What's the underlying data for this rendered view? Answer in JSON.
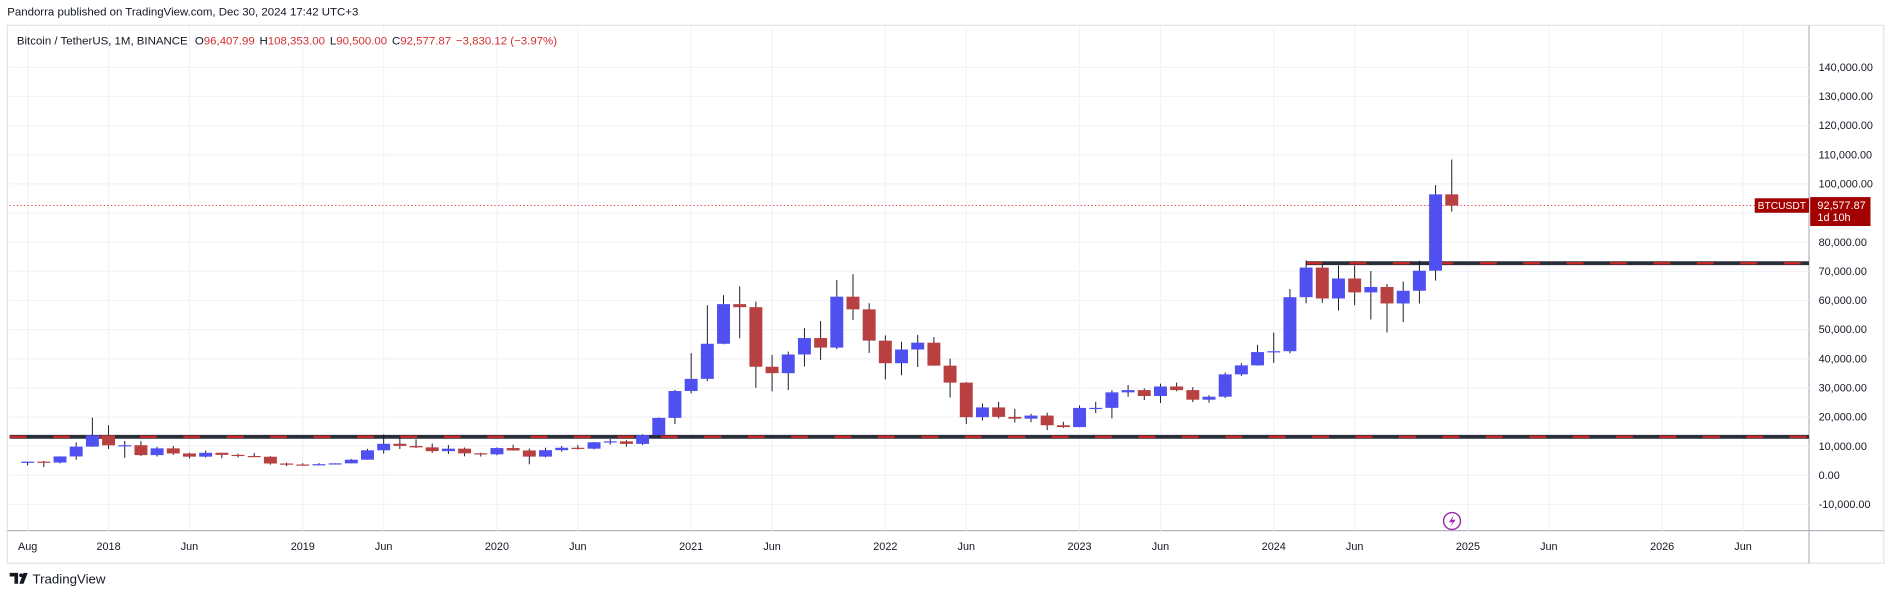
{
  "header": "Pandorra published on TradingView.com, Dec 30, 2024 17:42 UTC+3",
  "footer": "TradingView",
  "chart_data": {
    "type": "candlestick",
    "symbol": "Bitcoin / TetherUS, 1M, BINANCE",
    "legend_values": [
      {
        "key": "O",
        "text": "96,407.99"
      },
      {
        "key": "H",
        "text": "108,353.00"
      },
      {
        "key": "L",
        "text": "90,500.00"
      },
      {
        "key": "C",
        "text": "92,577.87"
      }
    ],
    "change": "−3,830.12 (−3.97%)",
    "symbol_tag": "BTCUSDT",
    "last_price": {
      "value": 92577.87,
      "label": "92,577.87"
    },
    "countdown": "1d 10h",
    "up_color": "#5050f0",
    "down_color": "#b94040",
    "grid": true,
    "levels": [
      {
        "value": 13200
      },
      {
        "value": 72800,
        "from": "2024-03"
      }
    ],
    "xlim": [
      "2017-07",
      "2026-10"
    ],
    "xticks": [
      {
        "value": "2017-08",
        "label": "Aug"
      },
      {
        "value": "2018-01",
        "label": "2018"
      },
      {
        "value": "2018-06",
        "label": "Jun"
      },
      {
        "value": "2019-01",
        "label": "2019"
      },
      {
        "value": "2019-06",
        "label": "Jun"
      },
      {
        "value": "2020-01",
        "label": "2020"
      },
      {
        "value": "2020-06",
        "label": "Jun"
      },
      {
        "value": "2021-01",
        "label": "2021"
      },
      {
        "value": "2021-06",
        "label": "Jun"
      },
      {
        "value": "2022-01",
        "label": "2022"
      },
      {
        "value": "2022-06",
        "label": "Jun"
      },
      {
        "value": "2023-01",
        "label": "2023"
      },
      {
        "value": "2023-06",
        "label": "Jun"
      },
      {
        "value": "2024-01",
        "label": "2024"
      },
      {
        "value": "2024-06",
        "label": "Jun"
      },
      {
        "value": "2025-01",
        "label": "2025"
      },
      {
        "value": "2025-06",
        "label": "Jun"
      },
      {
        "value": "2026-01",
        "label": "2026"
      },
      {
        "value": "2026-06",
        "label": "Jun"
      }
    ],
    "ylim": [
      -19000,
      154000
    ],
    "yticks": [
      {
        "value": -10000,
        "label": "-10,000.00"
      },
      {
        "value": 0,
        "label": "0.00"
      },
      {
        "value": 10000,
        "label": "10,000.00"
      },
      {
        "value": 20000,
        "label": "20,000.00"
      },
      {
        "value": 30000,
        "label": "30,000.00"
      },
      {
        "value": 40000,
        "label": "40,000.00"
      },
      {
        "value": 50000,
        "label": "50,000.00"
      },
      {
        "value": 60000,
        "label": "60,000.00"
      },
      {
        "value": 70000,
        "label": "70,000.00"
      },
      {
        "value": 80000,
        "label": "80,000.00"
      },
      {
        "value": 90000,
        "label": "90,000.00"
      },
      {
        "value": 100000,
        "label": "100,000.00"
      },
      {
        "value": 110000,
        "label": "110,000.00"
      },
      {
        "value": 120000,
        "label": "120,000.00"
      },
      {
        "value": 130000,
        "label": "130,000.00"
      },
      {
        "value": 140000,
        "label": "140,000.00"
      }
    ],
    "x": [
      "2017-08",
      "2017-09",
      "2017-10",
      "2017-11",
      "2017-12",
      "2018-01",
      "2018-02",
      "2018-03",
      "2018-04",
      "2018-05",
      "2018-06",
      "2018-07",
      "2018-08",
      "2018-09",
      "2018-10",
      "2018-11",
      "2018-12",
      "2019-01",
      "2019-02",
      "2019-03",
      "2019-04",
      "2019-05",
      "2019-06",
      "2019-07",
      "2019-08",
      "2019-09",
      "2019-10",
      "2019-11",
      "2019-12",
      "2020-01",
      "2020-02",
      "2020-03",
      "2020-04",
      "2020-05",
      "2020-06",
      "2020-07",
      "2020-08",
      "2020-09",
      "2020-10",
      "2020-11",
      "2020-12",
      "2021-01",
      "2021-02",
      "2021-03",
      "2021-04",
      "2021-05",
      "2021-06",
      "2021-07",
      "2021-08",
      "2021-09",
      "2021-10",
      "2021-11",
      "2021-12",
      "2022-01",
      "2022-02",
      "2022-03",
      "2022-04",
      "2022-05",
      "2022-06",
      "2022-07",
      "2022-08",
      "2022-09",
      "2022-10",
      "2022-11",
      "2022-12",
      "2023-01",
      "2023-02",
      "2023-03",
      "2023-04",
      "2023-05",
      "2023-06",
      "2023-07",
      "2023-08",
      "2023-09",
      "2023-10",
      "2023-11",
      "2023-12",
      "2024-01",
      "2024-02",
      "2024-03",
      "2024-04",
      "2024-05",
      "2024-06",
      "2024-07",
      "2024-08",
      "2024-09",
      "2024-10",
      "2024-11",
      "2024-12"
    ],
    "open": [
      4261,
      4690,
      4378,
      6463,
      9838,
      13716,
      10285,
      10326,
      6923,
      9246,
      7494,
      6391,
      7730,
      7011,
      6626,
      6371,
      4041,
      3702,
      3434,
      3813,
      4105,
      5350,
      8574,
      10817,
      10082,
      9588,
      8289,
      9140,
      7541,
      7195,
      9352,
      8523,
      6410,
      8620,
      9448,
      9138,
      11335,
      11649,
      10776,
      13791,
      19695,
      28923,
      33092,
      45135,
      58740,
      57694,
      37253,
      35045,
      41461,
      47100,
      43824,
      61299,
      56950,
      46216,
      38466,
      43160,
      45510,
      37630,
      31801,
      19942,
      23293,
      20050,
      19422,
      20490,
      17164,
      16542,
      23125,
      23141,
      28465,
      29233,
      27210,
      30472,
      29232,
      25941,
      26963,
      34640,
      37724,
      42284,
      42580,
      61131,
      71280,
      60672,
      67540,
      62772,
      64628,
      58974,
      63327,
      70215,
      96407.99
    ],
    "high": [
      4745,
      4939,
      6470,
      11300,
      19798,
      17176,
      11786,
      11710,
      9765,
      10020,
      7760,
      8507,
      7750,
      7410,
      7680,
      6555,
      4313,
      4140,
      4198,
      4121,
      5600,
      9074,
      13970,
      13147,
      12325,
      10905,
      10370,
      9513,
      7750,
      9575,
      10500,
      9188,
      9460,
      10067,
      10380,
      11444,
      12468,
      12050,
      14100,
      19863,
      29300,
      41950,
      58352,
      61844,
      64854,
      59592,
      41330,
      42448,
      50500,
      52920,
      67000,
      69000,
      59053,
      47990,
      45821,
      48189,
      47444,
      40023,
      31986,
      24668,
      25211,
      22799,
      21085,
      21480,
      18387,
      23960,
      25250,
      29184,
      31000,
      29820,
      31431,
      31804,
      30244,
      27483,
      35280,
      38450,
      44729,
      48969,
      63913,
      73777,
      72797,
      71979,
      71997,
      70079,
      65660,
      66498,
      73620,
      99588,
      108353
    ],
    "low": [
      3400,
      2817,
      4110,
      5325,
      9722,
      9035,
      6000,
      6600,
      6430,
      7032,
      5755,
      6070,
      5880,
      6100,
      6200,
      3652,
      3156,
      3349,
      3372,
      3670,
      4096,
      5330,
      7444,
      9010,
      9320,
      7710,
      7300,
      6515,
      6435,
      6871,
      8445,
      3782,
      6150,
      8117,
      8833,
      8893,
      10518,
      9825,
      10375,
      13195,
      17572,
      28130,
      32296,
      44950,
      47044,
      30000,
      28805,
      29278,
      37332,
      39600,
      43283,
      53256,
      42000,
      32917,
      34322,
      37155,
      37578,
      26700,
      17622,
      18782,
      19520,
      18125,
      18190,
      15476,
      16256,
      16500,
      21351,
      19549,
      26942,
      25811,
      24800,
      28861,
      25166,
      24901,
      26555,
      34097,
      37615,
      38555,
      41884,
      59005,
      59191,
      56552,
      58402,
      53485,
      49000,
      52550,
      58946,
      66835,
      90500
    ],
    "close": [
      4690,
      4378,
      6463,
      9838,
      13716,
      10285,
      10326,
      6923,
      9246,
      7494,
      6391,
      7730,
      7011,
      6626,
      6371,
      4041,
      3702,
      3434,
      3813,
      4105,
      5350,
      8574,
      10817,
      10082,
      9588,
      8289,
      9140,
      7541,
      7195,
      9352,
      8523,
      6410,
      8620,
      9448,
      9138,
      11335,
      11649,
      10776,
      13791,
      19695,
      28923,
      33092,
      45135,
      58740,
      57694,
      37253,
      35045,
      41461,
      47100,
      43824,
      61299,
      56950,
      46216,
      38466,
      43160,
      45510,
      37630,
      31801,
      19942,
      23293,
      20050,
      19422,
      20490,
      17164,
      16542,
      23125,
      23141,
      28465,
      29233,
      27210,
      30472,
      29232,
      25941,
      26963,
      34640,
      37724,
      42284,
      42580,
      61131,
      71280,
      60672,
      67540,
      62772,
      64628,
      58974,
      63327,
      70215,
      96407.99,
      92577.87
    ]
  }
}
